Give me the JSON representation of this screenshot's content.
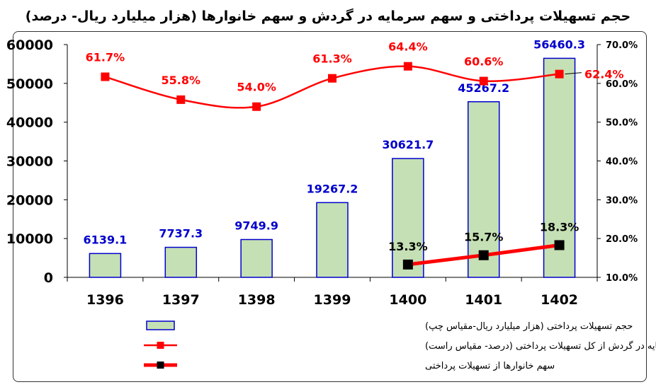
{
  "chart_data": {
    "type": "bar",
    "title": "حجم تسهیلات پرداختی و سهم سرمایه در گردش و سهم خانوارها (هزار میلیارد ریال- درصد)",
    "categories": [
      "1396",
      "1397",
      "1398",
      "1399",
      "1400",
      "1401",
      "1402"
    ],
    "y_left": {
      "ylim": [
        0,
        60000
      ],
      "ticks": [
        "0",
        "10000",
        "20000",
        "30000",
        "40000",
        "50000",
        "60000"
      ]
    },
    "y_right": {
      "ylim": [
        10,
        70
      ],
      "ticks": [
        "10.0%",
        "20.0%",
        "30.0%",
        "40.0%",
        "50.0%",
        "60.0%",
        "70.0%"
      ]
    },
    "series": [
      {
        "name": "حجم تسهیلات پرداختی (هزار میلیارد ریال-مقیاس چپ)",
        "kind": "bar",
        "axis": "left",
        "color": "#c5e0b4",
        "edge": "#0000cc",
        "values": [
          6139.1,
          7737.3,
          9749.9,
          19267.2,
          30621.7,
          45267.2,
          56460.3
        ],
        "labels": [
          "6139.1",
          "7737.3",
          "9749.9",
          "19267.2",
          "30621.7",
          "45267.2",
          "56460.3"
        ]
      },
      {
        "name": "سهم سرمایه در گردش از کل تسهیلات پرداختی (درصد- مقیاس راست)",
        "kind": "line",
        "axis": "right",
        "color": "#ff0000",
        "values": [
          61.7,
          55.8,
          54.0,
          61.3,
          64.4,
          60.6,
          62.4
        ],
        "labels": [
          "61.7%",
          "55.8%",
          "54.0%",
          "61.3%",
          "64.4%",
          "60.6%",
          "62.4%"
        ]
      },
      {
        "name": "سهم خانوارها از تسهیلات پرداختی",
        "kind": "line",
        "axis": "right",
        "color": "#ff0000",
        "marker": "#000000",
        "values": [
          null,
          null,
          null,
          null,
          13.3,
          15.7,
          18.3
        ],
        "labels": [
          "",
          "",
          "",
          "",
          "13.3%",
          "15.7%",
          "18.3%"
        ]
      }
    ],
    "legend": "bottom"
  }
}
